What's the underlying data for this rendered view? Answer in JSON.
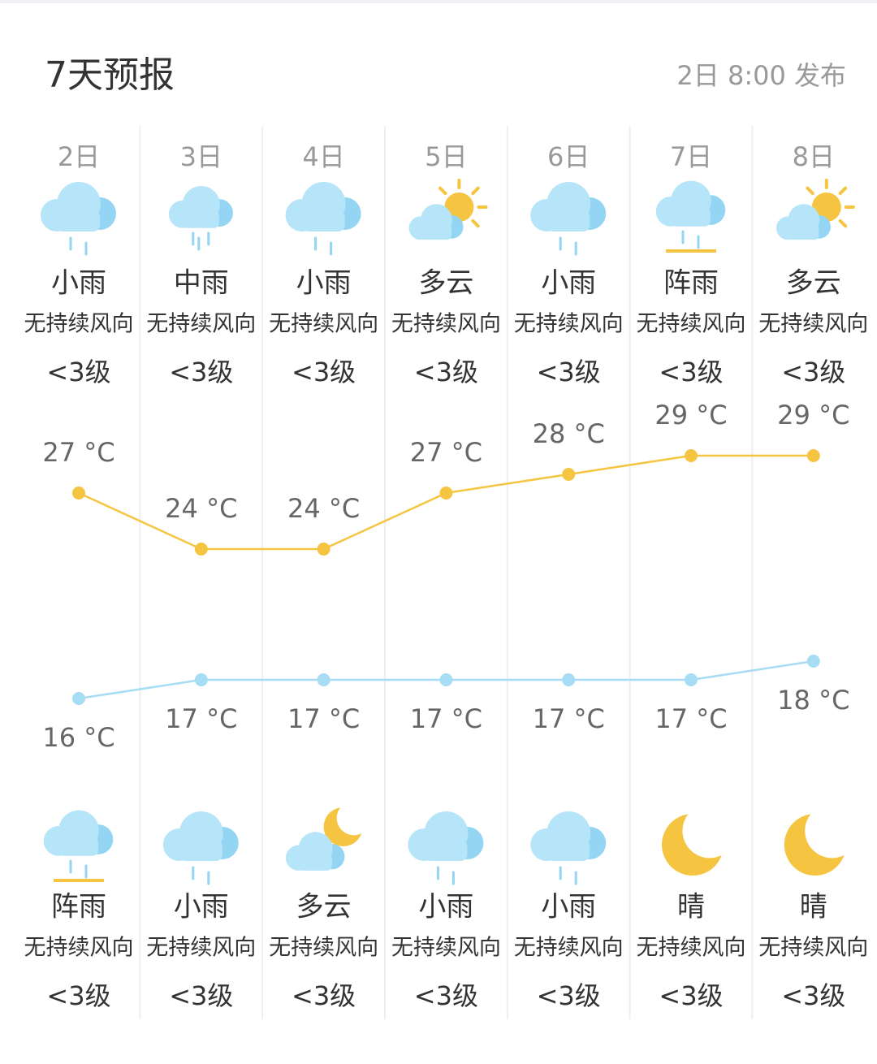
{
  "header": {
    "title": "7天预报",
    "published": "2日 8:00 发布"
  },
  "colors": {
    "high": "#f5c542",
    "low": "#a6dcf4"
  },
  "days": [
    {
      "date": "2日",
      "day": {
        "weather": "小雨",
        "icon": "rain",
        "wind": "无持续风向",
        "level": "<3级"
      },
      "high": {
        "value": 27,
        "label": "27 °C"
      },
      "low": {
        "value": 16,
        "label": "16 °C"
      },
      "night": {
        "weather": "阵雨",
        "icon": "shower",
        "wind": "无持续风向",
        "level": "<3级"
      }
    },
    {
      "date": "3日",
      "day": {
        "weather": "中雨",
        "icon": "moderate-rain",
        "wind": "无持续风向",
        "level": "<3级"
      },
      "high": {
        "value": 24,
        "label": "24 °C"
      },
      "low": {
        "value": 17,
        "label": "17 °C"
      },
      "night": {
        "weather": "小雨",
        "icon": "rain",
        "wind": "无持续风向",
        "level": "<3级"
      }
    },
    {
      "date": "4日",
      "day": {
        "weather": "小雨",
        "icon": "rain",
        "wind": "无持续风向",
        "level": "<3级"
      },
      "high": {
        "value": 24,
        "label": "24 °C"
      },
      "low": {
        "value": 17,
        "label": "17 °C"
      },
      "night": {
        "weather": "多云",
        "icon": "cloudy-night",
        "wind": "无持续风向",
        "level": "<3级"
      }
    },
    {
      "date": "5日",
      "day": {
        "weather": "多云",
        "icon": "cloudy-day",
        "wind": "无持续风向",
        "level": "<3级"
      },
      "high": {
        "value": 27,
        "label": "27 °C"
      },
      "low": {
        "value": 17,
        "label": "17 °C"
      },
      "night": {
        "weather": "小雨",
        "icon": "rain",
        "wind": "无持续风向",
        "level": "<3级"
      }
    },
    {
      "date": "6日",
      "day": {
        "weather": "小雨",
        "icon": "rain",
        "wind": "无持续风向",
        "level": "<3级"
      },
      "high": {
        "value": 28,
        "label": "28 °C"
      },
      "low": {
        "value": 17,
        "label": "17 °C"
      },
      "night": {
        "weather": "小雨",
        "icon": "rain",
        "wind": "无持续风向",
        "level": "<3级"
      }
    },
    {
      "date": "7日",
      "day": {
        "weather": "阵雨",
        "icon": "shower",
        "wind": "无持续风向",
        "level": "<3级"
      },
      "high": {
        "value": 29,
        "label": "29 °C"
      },
      "low": {
        "value": 17,
        "label": "17 °C"
      },
      "night": {
        "weather": "晴",
        "icon": "clear-night",
        "wind": "无持续风向",
        "level": "<3级"
      }
    },
    {
      "date": "8日",
      "day": {
        "weather": "多云",
        "icon": "cloudy-day",
        "wind": "无持续风向",
        "level": "<3级"
      },
      "high": {
        "value": 29,
        "label": "29 °C"
      },
      "low": {
        "value": 18,
        "label": "18 °C"
      },
      "night": {
        "weather": "晴",
        "icon": "clear-night",
        "wind": "无持续风向",
        "level": "<3级"
      }
    }
  ]
}
